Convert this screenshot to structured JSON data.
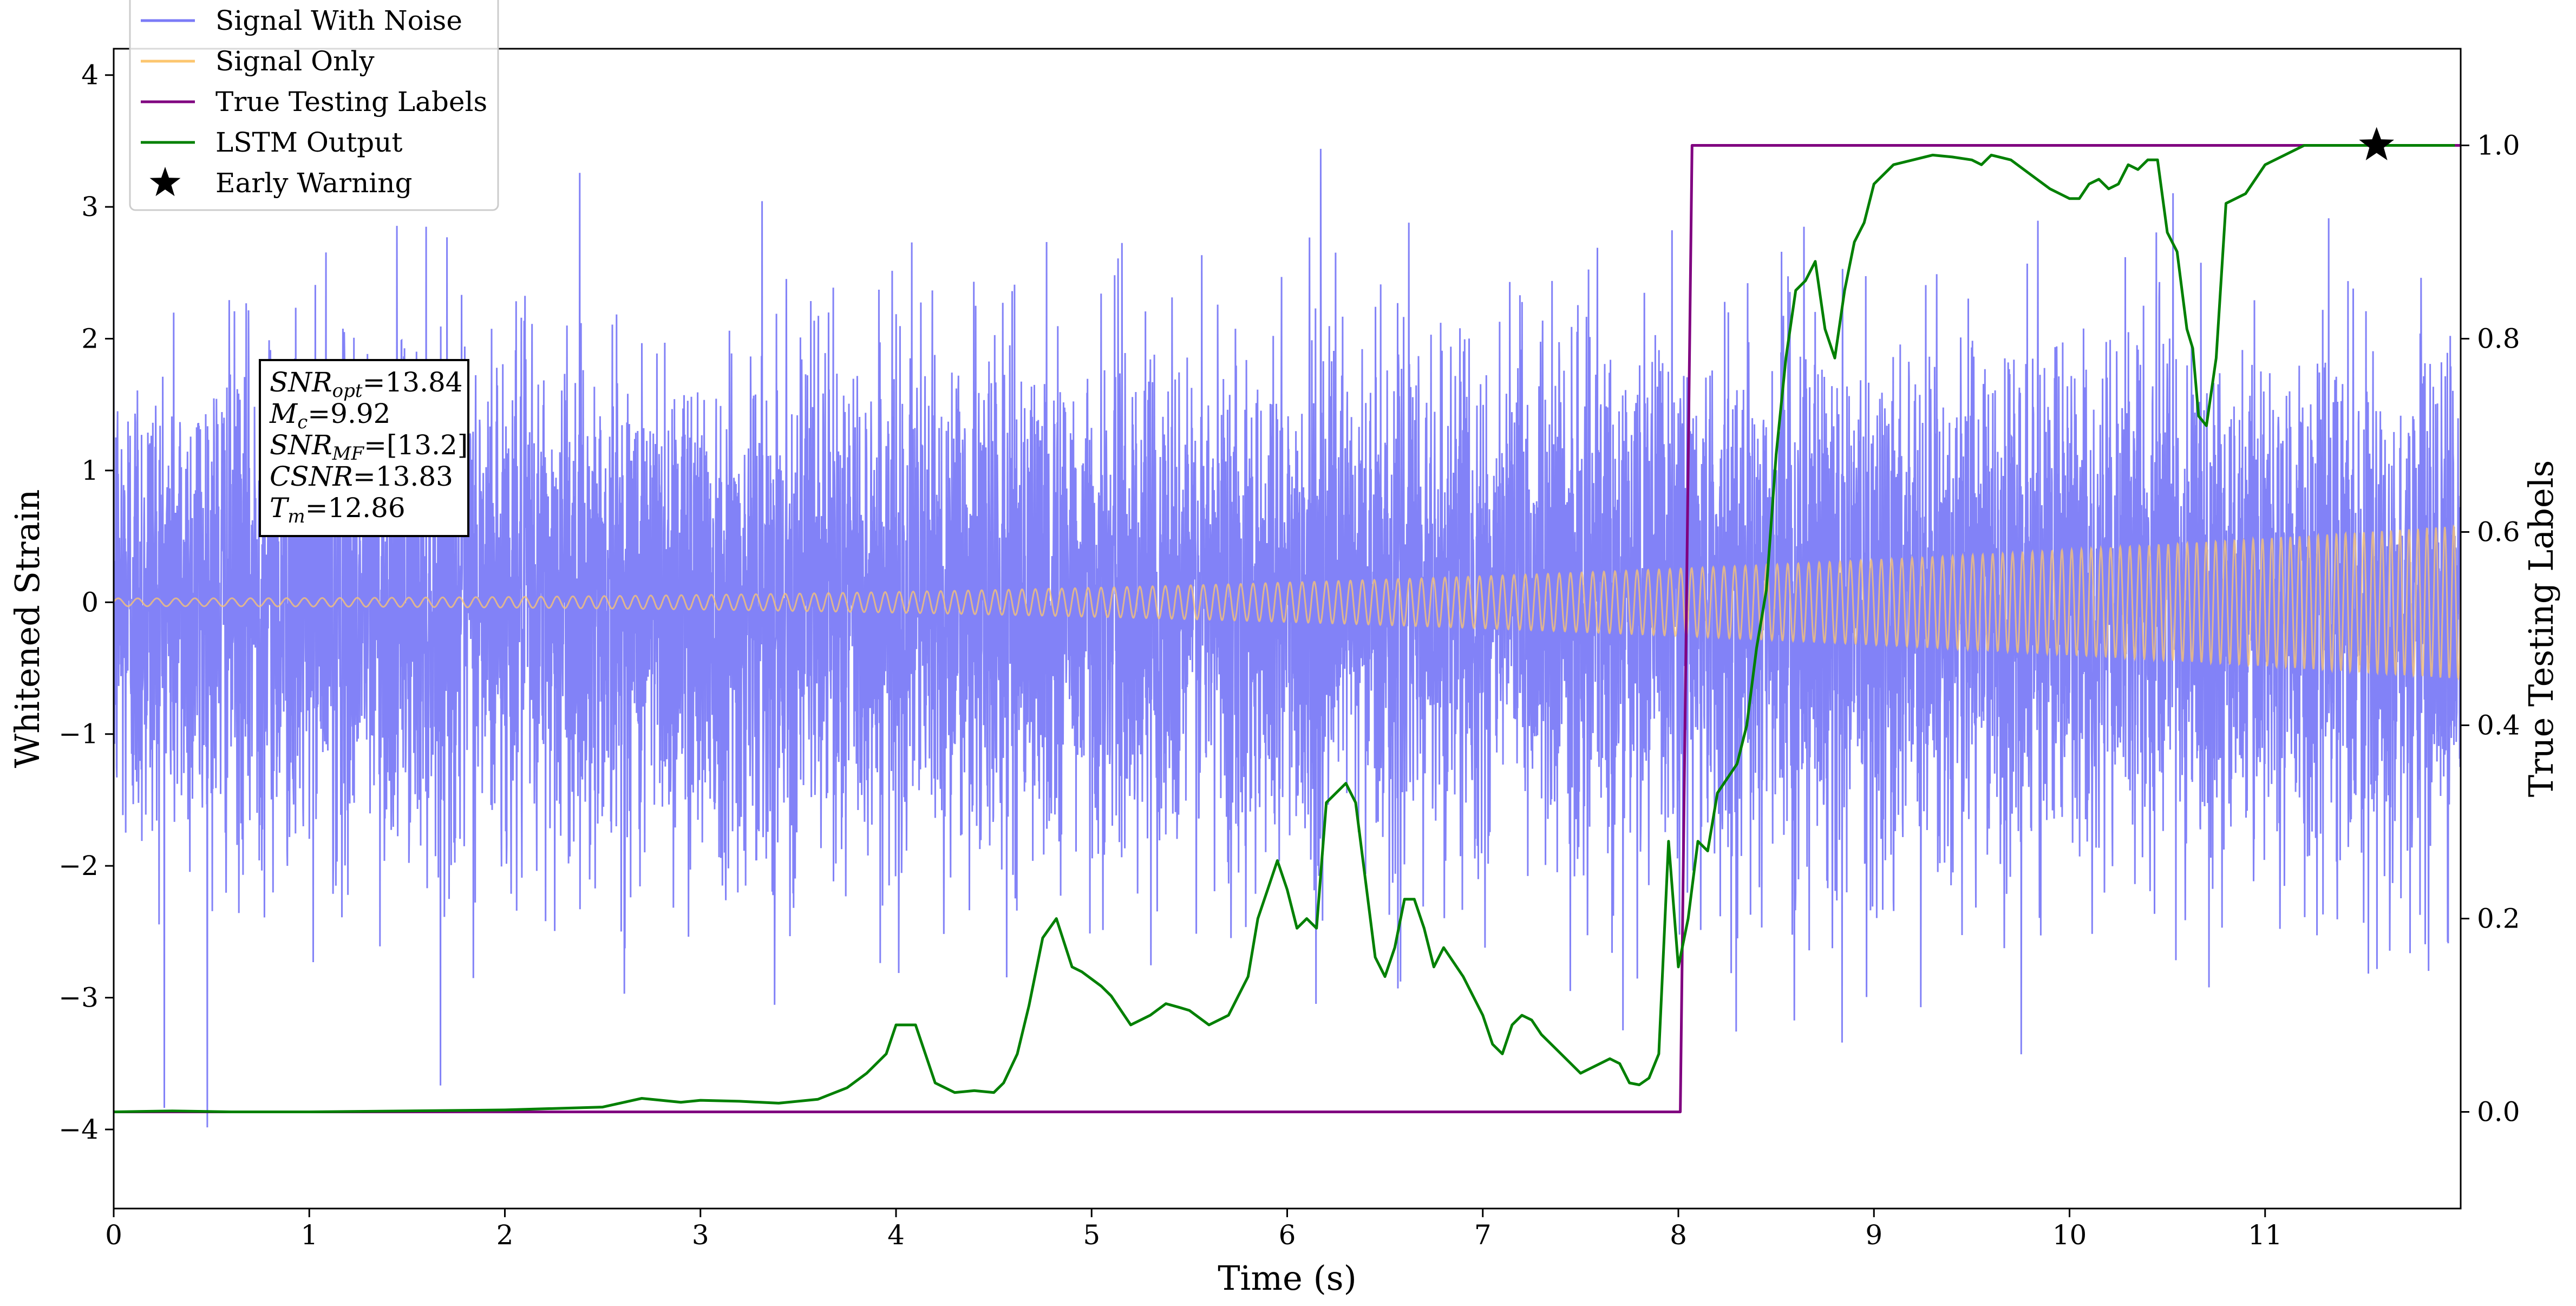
{
  "chart_data": {
    "type": "line",
    "xlabel": "Time (s)",
    "ylabel_left": "Whitened Strain",
    "ylabel_right": "True Testing Labels",
    "xlim": [
      0,
      12
    ],
    "ylim_left": [
      -4.6,
      4.2
    ],
    "ylim_right": [
      -0.1,
      1.1
    ],
    "x_ticks": [
      0,
      1,
      2,
      3,
      4,
      5,
      6,
      7,
      8,
      9,
      10,
      11
    ],
    "x_tick_labels": [
      "0",
      "1",
      "2",
      "3",
      "4",
      "5",
      "6",
      "7",
      "8",
      "9",
      "10",
      "11"
    ],
    "y_left_ticks": [
      -4,
      -3,
      -2,
      -1,
      0,
      1,
      2,
      3,
      4
    ],
    "y_left_tick_labels": [
      "−4",
      "−3",
      "−2",
      "−1",
      "0",
      "1",
      "2",
      "3",
      "4"
    ],
    "y_right_ticks": [
      0.0,
      0.2,
      0.4,
      0.6,
      0.8,
      1.0
    ],
    "y_right_tick_labels": [
      "0.0",
      "0.2",
      "0.4",
      "0.6",
      "0.8",
      "1.0"
    ],
    "legend": {
      "position": "upper-left",
      "entries": [
        {
          "label": "Signal With Noise",
          "color": "#7b7bf7",
          "marker": "line"
        },
        {
          "label": "Signal Only",
          "color": "#fcc66f",
          "marker": "line"
        },
        {
          "label": "True Testing Labels",
          "color": "#800080",
          "marker": "line"
        },
        {
          "label": "LSTM Output",
          "color": "#008000",
          "marker": "line"
        },
        {
          "label": "Early Warning",
          "color": "#000000",
          "marker": "star"
        }
      ]
    },
    "annotation": {
      "lines": [
        {
          "main": "SNR",
          "sub": "opt",
          "rest": "=13.84"
        },
        {
          "main": "M",
          "sub": "c",
          "rest": "=9.92"
        },
        {
          "main": "SNR",
          "sub": "MF",
          "rest": "=[13.2]"
        },
        {
          "main": "CSNR",
          "sub": "",
          "rest": "=13.83"
        },
        {
          "main": "T",
          "sub": "m",
          "rest": "=12.86"
        }
      ]
    },
    "series": [
      {
        "name": "Signal With Noise",
        "axis": "left",
        "color": "#7b7bf7",
        "kind": "noise",
        "x_range": [
          0,
          12
        ],
        "core_band": [
          -1.0,
          1.0
        ],
        "range": [
          -4.2,
          3.8
        ]
      },
      {
        "name": "Signal Only",
        "axis": "left",
        "color": "#fcc66f",
        "kind": "chirp",
        "x_range": [
          0,
          12
        ],
        "amplitude_start": 0.03,
        "amplitude_end": 0.58,
        "frequency_start_hz": 10,
        "frequency_end_hz": 22
      },
      {
        "name": "True Testing Labels",
        "axis": "right",
        "color": "#800080",
        "x": [
          0,
          8.01,
          8.07,
          12
        ],
        "y": [
          0,
          0,
          1,
          1
        ]
      },
      {
        "name": "LSTM Output",
        "axis": "right",
        "color": "#008000",
        "x": [
          0,
          0.3,
          0.6,
          1.0,
          1.5,
          2.0,
          2.5,
          2.7,
          2.9,
          3.0,
          3.2,
          3.4,
          3.6,
          3.75,
          3.85,
          3.95,
          4.0,
          4.1,
          4.2,
          4.3,
          4.4,
          4.5,
          4.55,
          4.62,
          4.68,
          4.75,
          4.82,
          4.9,
          4.95,
          5.05,
          5.1,
          5.2,
          5.3,
          5.38,
          5.45,
          5.5,
          5.6,
          5.7,
          5.75,
          5.8,
          5.85,
          5.9,
          5.95,
          6.0,
          6.05,
          6.1,
          6.15,
          6.2,
          6.25,
          6.3,
          6.35,
          6.4,
          6.45,
          6.5,
          6.55,
          6.6,
          6.65,
          6.7,
          6.75,
          6.8,
          6.9,
          7.0,
          7.05,
          7.1,
          7.15,
          7.2,
          7.25,
          7.3,
          7.4,
          7.5,
          7.6,
          7.65,
          7.7,
          7.75,
          7.8,
          7.85,
          7.9,
          7.95,
          8.0,
          8.05,
          8.1,
          8.15,
          8.2,
          8.3,
          8.35,
          8.4,
          8.45,
          8.5,
          8.55,
          8.6,
          8.65,
          8.7,
          8.75,
          8.8,
          8.85,
          8.9,
          8.95,
          9.0,
          9.1,
          9.2,
          9.3,
          9.4,
          9.5,
          9.55,
          9.6,
          9.7,
          9.8,
          9.9,
          10.0,
          10.05,
          10.1,
          10.15,
          10.2,
          10.25,
          10.3,
          10.35,
          10.4,
          10.45,
          10.5,
          10.55,
          10.6,
          10.63,
          10.66,
          10.7,
          10.75,
          10.8,
          10.9,
          11.0,
          11.1,
          11.2,
          11.3,
          11.4,
          11.5,
          11.6,
          11.7,
          11.8,
          11.9,
          11.97
        ],
        "y": [
          0.0,
          0.001,
          0.0,
          0.0,
          0.001,
          0.002,
          0.005,
          0.014,
          0.01,
          0.012,
          0.011,
          0.009,
          0.013,
          0.025,
          0.04,
          0.06,
          0.09,
          0.09,
          0.03,
          0.02,
          0.022,
          0.02,
          0.03,
          0.06,
          0.11,
          0.18,
          0.2,
          0.15,
          0.145,
          0.13,
          0.12,
          0.09,
          0.1,
          0.112,
          0.108,
          0.105,
          0.09,
          0.1,
          0.12,
          0.14,
          0.2,
          0.23,
          0.26,
          0.23,
          0.19,
          0.2,
          0.19,
          0.32,
          0.33,
          0.34,
          0.32,
          0.24,
          0.16,
          0.14,
          0.17,
          0.22,
          0.22,
          0.19,
          0.15,
          0.17,
          0.14,
          0.1,
          0.07,
          0.06,
          0.09,
          0.1,
          0.095,
          0.08,
          0.06,
          0.04,
          0.05,
          0.055,
          0.05,
          0.03,
          0.028,
          0.035,
          0.06,
          0.28,
          0.15,
          0.2,
          0.28,
          0.27,
          0.33,
          0.36,
          0.4,
          0.48,
          0.54,
          0.68,
          0.78,
          0.85,
          0.86,
          0.88,
          0.81,
          0.78,
          0.85,
          0.9,
          0.92,
          0.96,
          0.98,
          0.985,
          0.99,
          0.988,
          0.985,
          0.98,
          0.99,
          0.985,
          0.97,
          0.955,
          0.945,
          0.945,
          0.96,
          0.965,
          0.955,
          0.96,
          0.98,
          0.975,
          0.985,
          0.985,
          0.91,
          0.89,
          0.81,
          0.79,
          0.72,
          0.71,
          0.78,
          0.94,
          0.95,
          0.98,
          0.99,
          1.0,
          1.0,
          1.0,
          1.0,
          1.0,
          1.0,
          1.0,
          1.0,
          1.0
        ]
      },
      {
        "name": "Early Warning",
        "axis": "right",
        "color": "#000000",
        "marker": "star",
        "x": [
          11.57
        ],
        "y": [
          1.0
        ]
      }
    ]
  }
}
